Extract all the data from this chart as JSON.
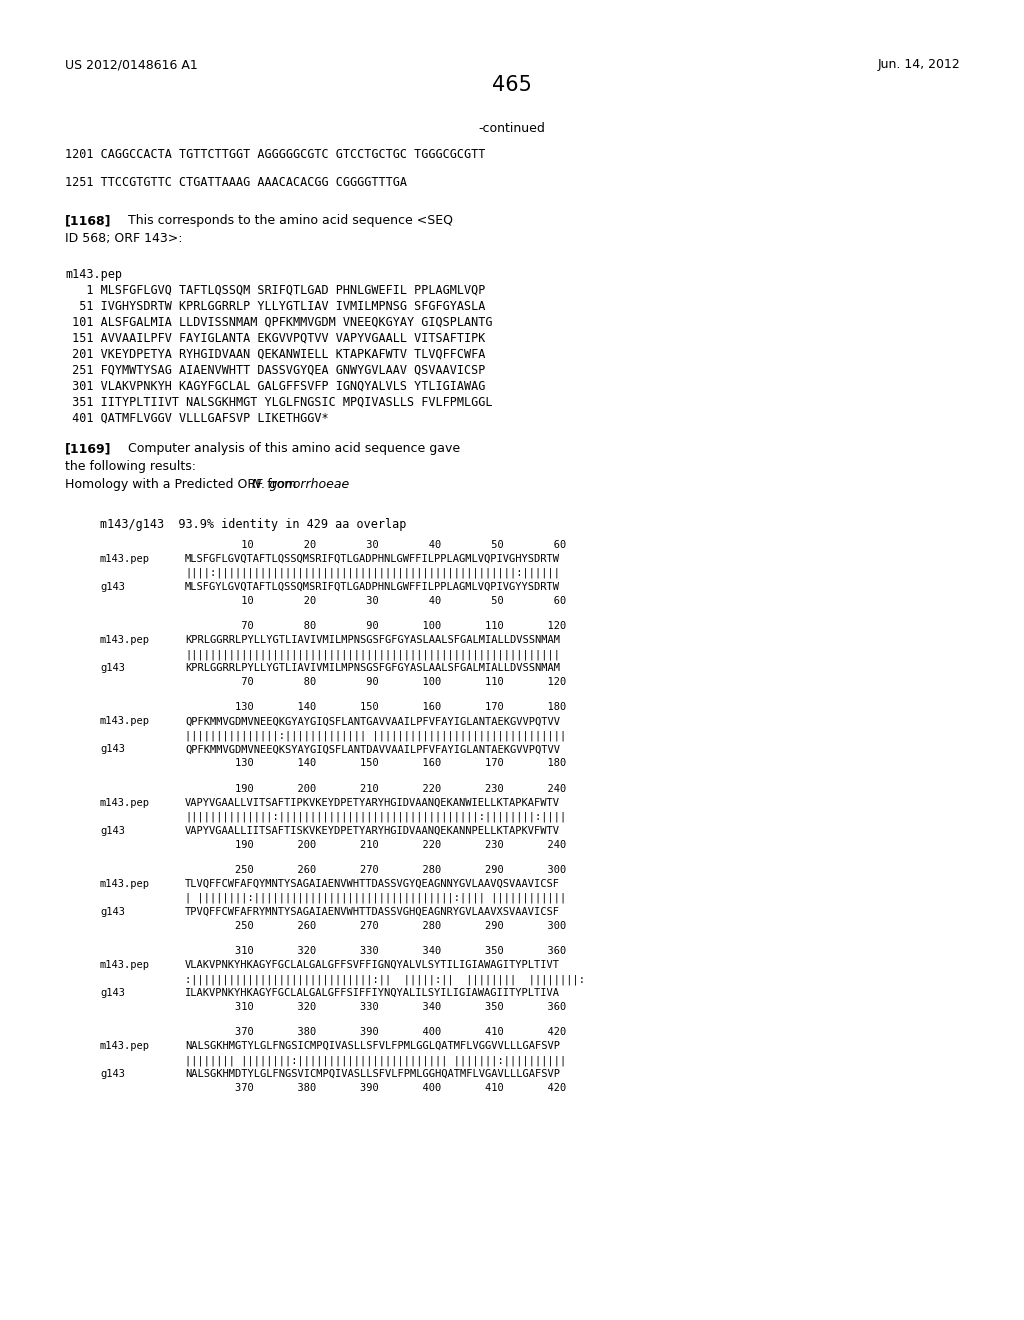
{
  "header_left": "US 2012/0148616 A1",
  "header_right": "Jun. 14, 2012",
  "page_number": "465",
  "continued": "-continued",
  "seq_lines": [
    "1201 CAGGCCACTA TGTTCTTGGT AGGGGGCGTC GTCCTGCTGC TGGGCGCGTT",
    "1251 TTCCGTGTTC CTGATTAAAG AAACACACGG CGGGGTTTGA"
  ],
  "para_1168_bold": "[1168]",
  "para_1168_rest": "  This corresponds to the amino acid sequence <SEQ",
  "para_1168_line2": "ID 568; ORF 143>:",
  "pep_header": "m143.pep",
  "pep_lines": [
    "   1 MLSFGFLGVQ TAFTLQSSQM SRIFQTLGAD PHNLGWEFIL PPLAGMLVQP",
    "  51 IVGHYSDRTW KPRLGGRRLP YLLYGTLIAV IVMILMPNSG SFGFGYASLA",
    " 101 ALSFGALMIA LLDVISSNMAM QPFKMMVGDM VNEEQKGYAY GIQSPLANTG",
    " 151 AVVAAILPFV FAYIGLANTA EKGVVPQTVV VAPYVGAALL VITSAFTIPK",
    " 201 VKEYDPETYA RYHGIDVAAN QEKANWIELL KTAPKAFWTV TLVQFFCWFA",
    " 251 FQYMWTYSAG AIAENVWHTT DASSVGYQEA GNWYGVLAAV QSVAAVICSP",
    " 301 VLAKVPNKYH KAGYFGCLAL GALGFFSVFP IGNQYALVLS YTLIGIAWAG",
    " 351 IITYPLTIIVT NALSGKHMGT YLGLFNGSIC MPQIVASLLS FVLFPMLGGL",
    " 401 QATMFLVGGV VLLLGAFSVP LIKETHGGV*"
  ],
  "para_1169_bold": "[1169]",
  "para_1169_rest": "  Computer analysis of this amino acid sequence gave",
  "para_1169_line2": "the following results:",
  "para_1169_line3_pre": "Homology with a Predicted ORF from ",
  "para_1169_line3_italic": "N. gonorrhoeae",
  "align_header": "m143/g143  93.9% identity in 429 aa overlap",
  "align_blocks": [
    {
      "nums_top": "         10        20        30        40        50        60",
      "seq1": "MLSFGFLGVQTAFTLQSSQMSRIFQTLGADPHNLGWFFILPPLAGMLVQPIVGHYSDRTW",
      "match": "||||:||||||||||||||||||||||||||||||||||||||||||||||||:||||||",
      "seq2": "MLSFGYLGVQTAFTLQSSQMSRIFQTLGADPHNLGWFFILPPLAGMLVQPIVGYYSDRTW",
      "nums_bot": "         10        20        30        40        50        60"
    },
    {
      "nums_top": "         70        80        90       100       110       120",
      "seq1": "KPRLGGRRLPYLLYGTLIAVIVMILMPNSGSFGFGYASLAALSFGALMIALLDVSSNMAM",
      "match": "||||||||||||||||||||||||||||||||||||||||||||||||||||||||||||",
      "seq2": "KPRLGGRRLPYLLYGTLIAVIVMILMPNSGSFGFGYASLAALSFGALMIALLDVSSNMAM",
      "nums_bot": "         70        80        90       100       110       120"
    },
    {
      "nums_top": "        130       140       150       160       170       180",
      "seq1": "QPFKMMVGDMVNEEQKGYAYGIQSFLANTGAVVAAILPFVFAYIGLANTAEKGVVPQTVV",
      "match": "|||||||||||||||:||||||||||||| |||||||||||||||||||||||||||||||",
      "seq2": "QPFKMMVGDMVNEEQKSYAYGIQSFLANTDAVVAAILPFVFAYIGLANTAEKGVVPQTVV",
      "nums_bot": "        130       140       150       160       170       180"
    },
    {
      "nums_top": "        190       200       210       220       230       240",
      "seq1": "VAPYVGAALLVITSAFTIPKVKEYDPETYARYHGIDVAANQEKANWIELLKTAPKAFWTV",
      "match": "||||||||||||||:||||||||||||||||||||||||||||||||:||||||||:||||",
      "seq2": "VAPYVGAALLIITSAFTISKVKEYDPETYARYHGIDVAANQEKANNPELLKTAPKVFWTV",
      "nums_bot": "        190       200       210       220       230       240"
    },
    {
      "nums_top": "        250       260       270       280       290       300",
      "seq1": "TLVQFFCWFAFQYMNTYSAGAIAENVWHTTDASSVGYQEAGNNYGVLAAVQSVAAVICSF",
      "match": "| ||||||||:||||||||||||||||||||||||||||||||:|||| ||||||||||||",
      "seq2": "TPVQFFCWFAFRYMNTYSAGAIAENVWHTTDASSVGHQEAGNRYGVLAAVXSVAAVICSF",
      "nums_bot": "        250       260       270       280       290       300"
    },
    {
      "nums_top": "        310       320       330       340       350       360",
      "seq1": "VLAKVPNKYHKAGYFGCLALGALGFFSVFFIGNQYALVLSYTILIGIAWAGITYPLTIVT",
      "match": ":|||||||||||||||||||||||||||||:||  |||||:||  ||||||||  ||||||||:",
      "seq2": "ILAKVPNKYHKAGYFGCLALGALGFFSIFFIYNQYALILSYILIGIAWAGIITYPLTIVA",
      "nums_bot": "        310       320       330       340       350       360"
    },
    {
      "nums_top": "        370       380       390       400       410       420",
      "seq1": "NALSGKHMGTYLGLFNGSICMPQIVASLLSFVLFPMLGGLQATMFLVGGVVLLLGAFSVP",
      "match": "|||||||| ||||||||:|||||||||||||||||||||||| |||||||:||||||||||",
      "seq2": "NALSGKHMDTYLGLFNGSVICMPQIVASLLSFVLFPMLGGHQATMFLVGAVLLLGAFSVP",
      "nums_bot": "        370       380       390       400       410       420"
    }
  ],
  "bg": "#ffffff"
}
